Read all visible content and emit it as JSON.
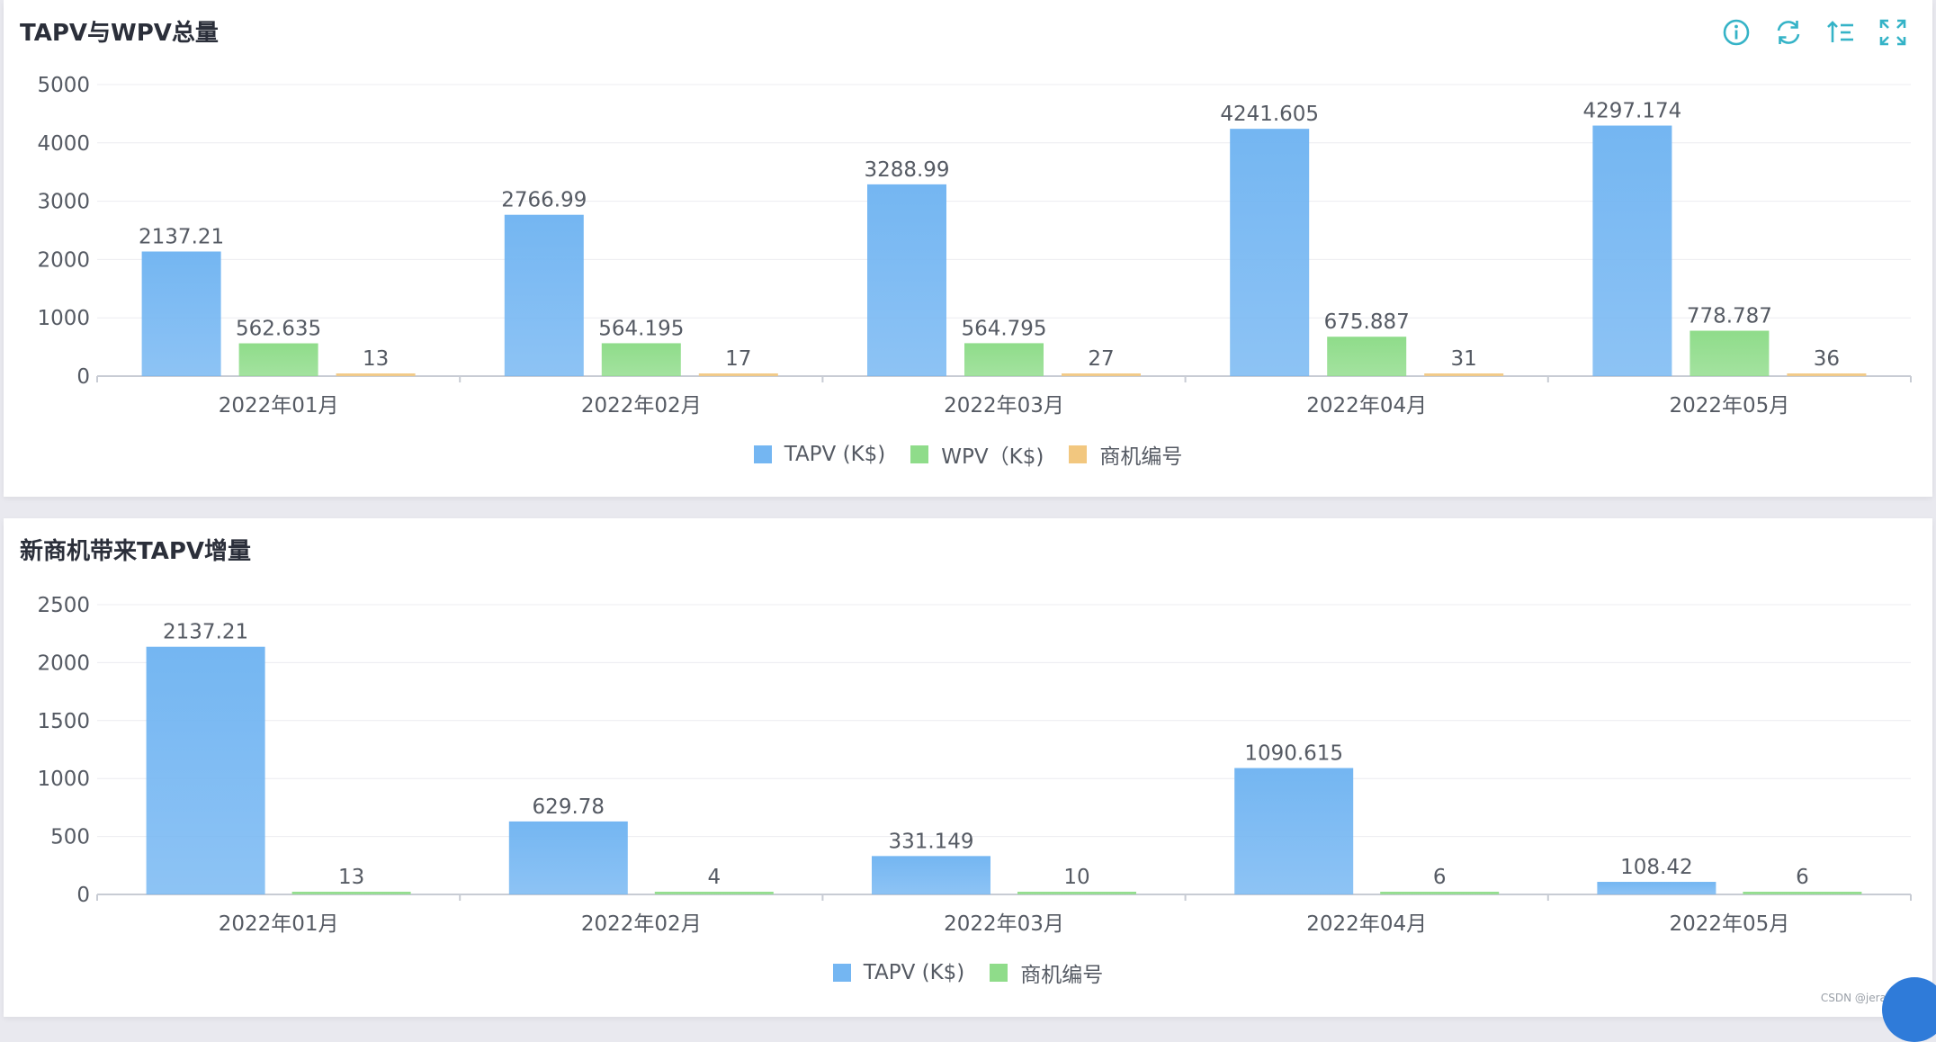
{
  "panels": [
    {
      "title": "TAPV与WPV总量",
      "chart_data": {
        "type": "bar",
        "title": "TAPV与WPV总量",
        "categories": [
          "2022年01月",
          "2022年02月",
          "2022年03月",
          "2022年04月",
          "2022年05月"
        ],
        "series": [
          {
            "name": "TAPV (K$)",
            "values": [
              2137.21,
              2766.99,
              3288.99,
              4241.605,
              4297.174
            ],
            "labels": [
              "2137.21",
              "2766.99",
              "3288.99",
              "4241.605",
              "4297.174"
            ],
            "color": "#74b6f2"
          },
          {
            "name": "WPV（K$)",
            "values": [
              562.635,
              564.195,
              564.795,
              675.887,
              778.787
            ],
            "labels": [
              "562.635",
              "564.195",
              "564.795",
              "675.887",
              "778.787"
            ],
            "color": "#8fdc8a"
          },
          {
            "name": "商机编号",
            "values": [
              13,
              17,
              27,
              31,
              36
            ],
            "labels": [
              "13",
              "17",
              "27",
              "31",
              "36"
            ],
            "color": "#f2c77f"
          }
        ],
        "ylim": [
          0,
          5000
        ],
        "yticks": [
          0,
          1000,
          2000,
          3000,
          4000,
          5000
        ],
        "grid": true,
        "legend": "bottom-center"
      }
    },
    {
      "title": "新商机带来TAPV增量",
      "chart_data": {
        "type": "bar",
        "title": "新商机带来TAPV增量",
        "categories": [
          "2022年01月",
          "2022年02月",
          "2022年03月",
          "2022年04月",
          "2022年05月"
        ],
        "series": [
          {
            "name": "TAPV (K$)",
            "values": [
              2137.21,
              629.78,
              331.149,
              1090.615,
              108.42
            ],
            "labels": [
              "2137.21",
              "629.78",
              "331.149",
              "1090.615",
              "108.42"
            ],
            "color": "#74b6f2"
          },
          {
            "name": "商机编号",
            "values": [
              13,
              4,
              10,
              6,
              6
            ],
            "labels": [
              "13",
              "4",
              "10",
              "6",
              "6"
            ],
            "color": "#8fdc8a"
          }
        ],
        "ylim": [
          0,
          2500
        ],
        "yticks": [
          0,
          500,
          1000,
          1500,
          2000,
          2500
        ],
        "grid": true,
        "legend": "bottom-center"
      }
    }
  ],
  "toolbar": {
    "icons": [
      "info-icon",
      "refresh-icon",
      "sort-icon",
      "fullscreen-icon"
    ],
    "accent": "#35b3c7"
  },
  "watermark": "CSDN @jeray"
}
